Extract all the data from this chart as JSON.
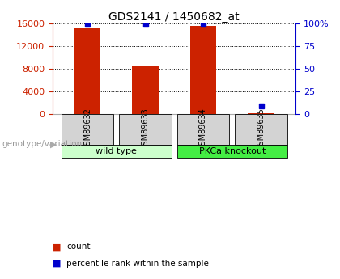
{
  "title": "GDS2141 / 1450682_at",
  "samples": [
    "GSM89632",
    "GSM89633",
    "GSM89634",
    "GSM89635"
  ],
  "counts": [
    15200,
    8600,
    15600,
    180
  ],
  "percentiles": [
    99,
    99,
    99,
    9
  ],
  "groups": [
    {
      "label": "wild type",
      "samples": [
        0,
        1
      ]
    },
    {
      "label": "PKCa knockout",
      "samples": [
        2,
        3
      ]
    }
  ],
  "ylim_left": [
    0,
    16000
  ],
  "ylim_right": [
    0,
    100
  ],
  "yticks_left": [
    0,
    4000,
    8000,
    12000,
    16000
  ],
  "yticks_right": [
    0,
    25,
    50,
    75,
    100
  ],
  "ytick_labels_right": [
    "0",
    "25",
    "50",
    "75",
    "100%"
  ],
  "bar_color": "#cc2200",
  "dot_color": "#0000cc",
  "bg_color": "#ffffff",
  "label_area_color": "#d3d3d3",
  "group_area_color_1": "#ccffcc",
  "group_area_color_2": "#44ee44",
  "title_fontsize": 10,
  "tick_fontsize": 8,
  "sample_fontsize": 7,
  "group_fontsize": 8,
  "legend_fontsize": 7.5,
  "genotype_fontsize": 7.5
}
